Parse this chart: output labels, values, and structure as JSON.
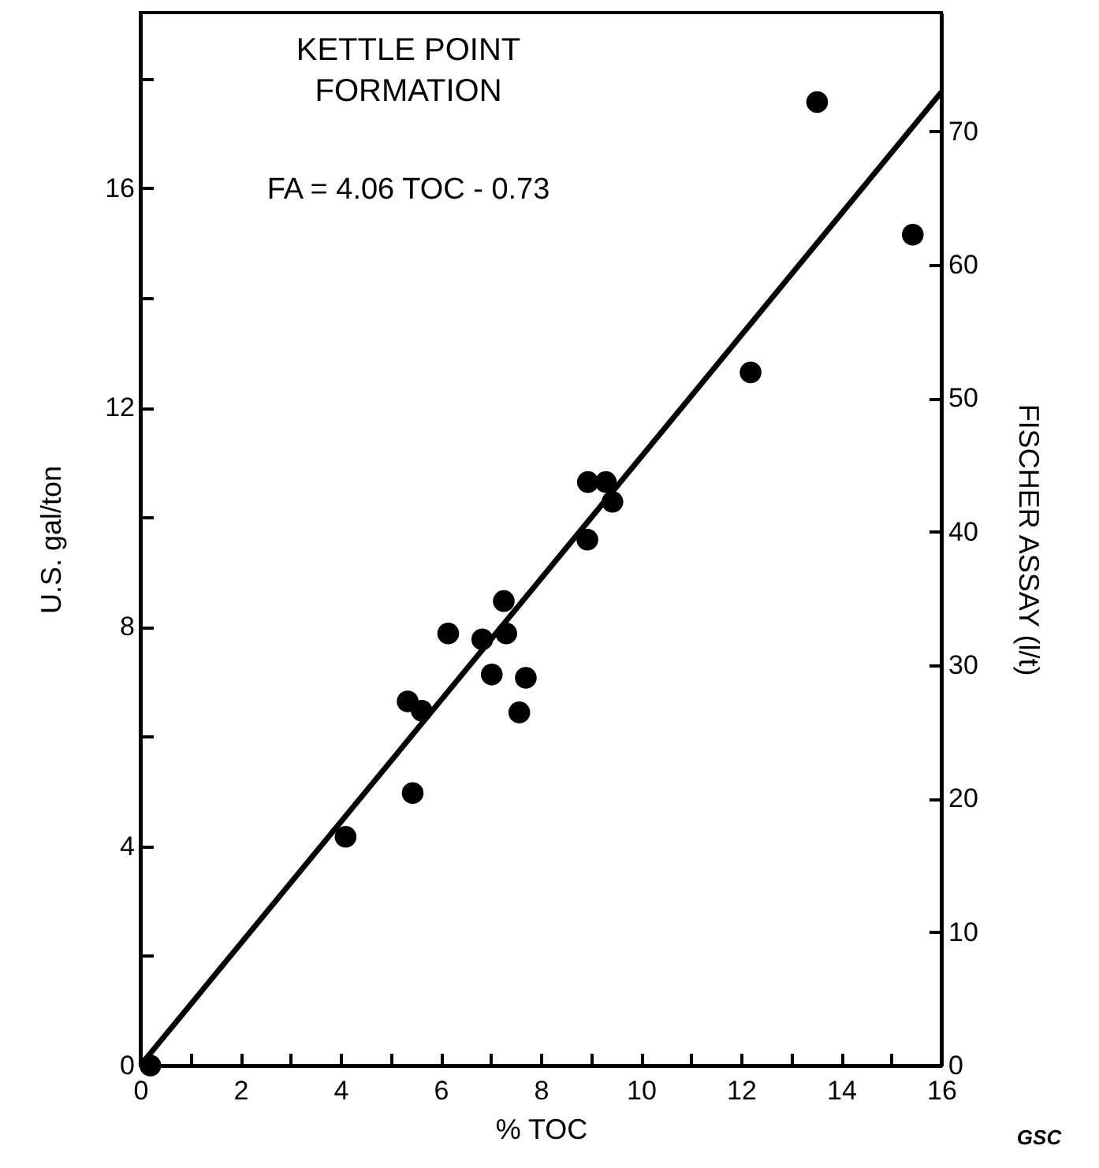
{
  "chart_data": {
    "type": "scatter",
    "title": "KETTLE POINT\nFORMATION",
    "xlabel": "% TOC",
    "ylabel": "U.S. gal/ton",
    "y2label": "FISCHER ASSAY (l/t)",
    "annotations": [
      "FA = 4.06 TOC - 0.73",
      "GSC"
    ],
    "series": [
      {
        "color": "#000000",
        "x": [
          0.2,
          4.1,
          5.44,
          5.34,
          5.62,
          6.15,
          6.83,
          7.02,
          7.31,
          7.26,
          7.7,
          7.57,
          8.93,
          9.43,
          8.94,
          9.3,
          12.19,
          13.52,
          15.43
        ],
        "values": [
          0,
          4.17,
          4.97,
          6.64,
          6.47,
          7.88,
          7.77,
          7.13,
          7.88,
          8.47,
          7.07,
          6.44,
          9.59,
          10.28,
          10.64,
          10.64,
          12.64,
          17.57,
          15.15
        ]
      },
      {
        "type": "line",
        "marker": "none",
        "color": "#000000",
        "x": [
          0,
          16
        ],
        "values": [
          0,
          17.75
        ]
      }
    ],
    "xlim": [
      0,
      16
    ],
    "ylim": [
      0,
      19.2
    ],
    "y2lim": [
      0,
      78.9
    ],
    "xticks": [
      0,
      {
        "value": 1,
        "label": null
      },
      2,
      {
        "value": 3,
        "label": null
      },
      4,
      {
        "value": 5,
        "label": null
      },
      6,
      {
        "value": 7,
        "label": null
      },
      8,
      {
        "value": 9,
        "label": null
      },
      10,
      {
        "value": 11,
        "label": null
      },
      12,
      {
        "value": 13,
        "label": null
      },
      14,
      {
        "value": 15,
        "label": null
      },
      16
    ],
    "yticks": [
      0,
      {
        "value": 2,
        "label": null
      },
      4,
      {
        "value": 6,
        "label": null
      },
      8,
      {
        "value": 10,
        "label": null
      },
      12,
      {
        "value": 14,
        "label": null
      },
      16,
      {
        "value": 18,
        "label": null
      }
    ],
    "y2ticks": [
      0,
      10,
      20,
      30,
      40,
      50,
      60,
      70
    ],
    "marker": "circle",
    "line_style": "solid",
    "grid": false
  }
}
